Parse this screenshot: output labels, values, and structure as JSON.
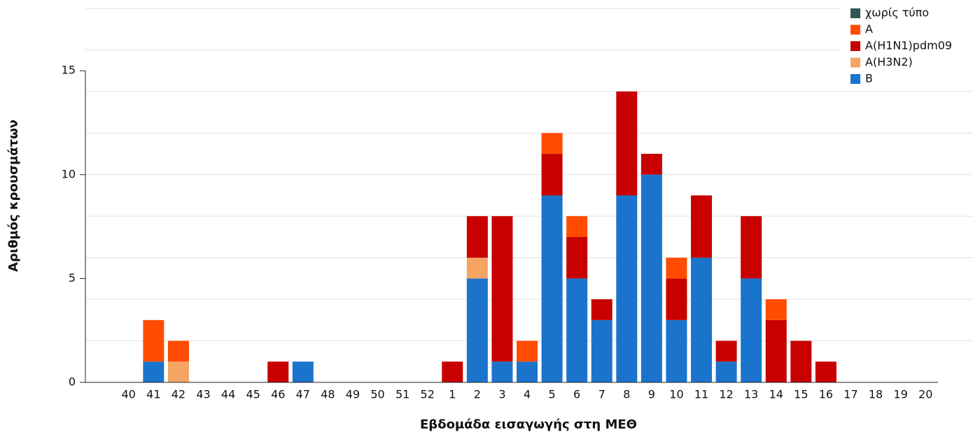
{
  "chart_data": {
    "type": "stacked_bar",
    "y_label": "Αριθμός κρουσμάτων",
    "x_label": "Εβδομάδα εισαγωγής στη ΜΕΘ",
    "categories": [
      "40",
      "41",
      "42",
      "43",
      "44",
      "45",
      "46",
      "47",
      "48",
      "49",
      "50",
      "51",
      "52",
      "1",
      "2",
      "3",
      "4",
      "5",
      "6",
      "7",
      "8",
      "9",
      "10",
      "11",
      "12",
      "13",
      "14",
      "15",
      "16",
      "17",
      "18",
      "19",
      "20"
    ],
    "series": [
      {
        "name": "χωρίς τύπο",
        "color": "#2f5555",
        "values": [
          0,
          0,
          0,
          0,
          0,
          0,
          0,
          0,
          0,
          0,
          0,
          0,
          0,
          0,
          0,
          0,
          0,
          0,
          0,
          0,
          0,
          0,
          0,
          0,
          0,
          0,
          0,
          0,
          0,
          0,
          0,
          0,
          0
        ]
      },
      {
        "name": "A",
        "color": "#ff4c00",
        "values": [
          0,
          2,
          1,
          0,
          0,
          0,
          0,
          0,
          0,
          0,
          0,
          0,
          0,
          0,
          0,
          0,
          1,
          1,
          1,
          0,
          0,
          0,
          1,
          0,
          0,
          0,
          1,
          0,
          0,
          0,
          0,
          0,
          0
        ]
      },
      {
        "name": "A(H1N1)pdm09",
        "color": "#c80000",
        "values": [
          0,
          0,
          0,
          0,
          0,
          0,
          1,
          0,
          0,
          0,
          0,
          0,
          0,
          1,
          2,
          7,
          0,
          2,
          2,
          1,
          5,
          1,
          2,
          3,
          1,
          3,
          3,
          2,
          1,
          0,
          0,
          0,
          0
        ]
      },
      {
        "name": "A(H3N2)",
        "color": "#f5a464",
        "values": [
          0,
          0,
          1,
          0,
          0,
          0,
          0,
          0,
          0,
          0,
          0,
          0,
          0,
          0,
          1,
          0,
          0,
          0,
          0,
          0,
          0,
          0,
          0,
          0,
          0,
          0,
          0,
          0,
          0,
          0,
          0,
          0,
          0
        ]
      },
      {
        "name": "B",
        "color": "#1b74cc",
        "values": [
          0,
          1,
          0,
          0,
          0,
          0,
          0,
          1,
          0,
          0,
          0,
          0,
          0,
          0,
          5,
          1,
          1,
          9,
          5,
          3,
          9,
          10,
          3,
          6,
          1,
          5,
          0,
          0,
          0,
          0,
          0,
          0,
          0
        ]
      }
    ],
    "ylim": [
      0,
      18
    ],
    "yticks": [
      0,
      5,
      10,
      15
    ],
    "grid_values": [
      2,
      4,
      6,
      8,
      10,
      12,
      14,
      16,
      18
    ],
    "legend_position": "top-right"
  }
}
